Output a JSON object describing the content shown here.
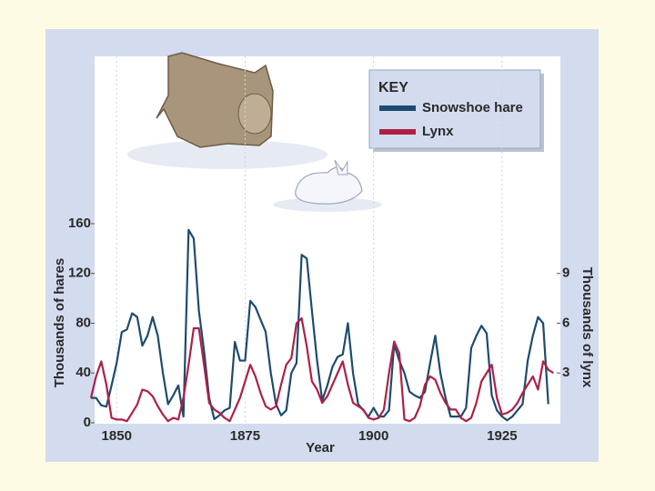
{
  "chart_data": {
    "type": "line",
    "x_label": "Year",
    "y_label": "Thousands of hares",
    "y2_label": "Thousands of lynx",
    "legend_title": "KEY",
    "legend_position": "upper right",
    "x": [
      1845,
      1846,
      1847,
      1848,
      1849,
      1850,
      1851,
      1852,
      1853,
      1854,
      1855,
      1856,
      1857,
      1858,
      1859,
      1860,
      1861,
      1862,
      1863,
      1864,
      1865,
      1866,
      1867,
      1868,
      1869,
      1870,
      1871,
      1872,
      1873,
      1874,
      1875,
      1876,
      1877,
      1878,
      1879,
      1880,
      1881,
      1882,
      1883,
      1884,
      1885,
      1886,
      1887,
      1888,
      1889,
      1890,
      1891,
      1892,
      1893,
      1894,
      1895,
      1896,
      1897,
      1898,
      1899,
      1900,
      1901,
      1902,
      1903,
      1904,
      1905,
      1906,
      1907,
      1908,
      1909,
      1910,
      1911,
      1912,
      1913,
      1914,
      1915,
      1916,
      1917,
      1918,
      1919,
      1920,
      1921,
      1922,
      1923,
      1924,
      1925,
      1926,
      1927,
      1928,
      1929,
      1930,
      1931,
      1932,
      1933,
      1934,
      1935
    ],
    "xlim": [
      1845,
      1936
    ],
    "xticks": [
      1850,
      1875,
      1900,
      1925
    ],
    "ylim": [
      0,
      160
    ],
    "yticks": [
      0,
      40,
      80,
      120,
      160
    ],
    "y2lim": [
      0,
      12
    ],
    "y2ticks": [
      3,
      6,
      9
    ],
    "series": [
      {
        "name": "Snowshoe hare",
        "color": "#1d4b6f",
        "axis": "y",
        "values": [
          20,
          20,
          14,
          13,
          30,
          48,
          73,
          75,
          88,
          85,
          62,
          70,
          85,
          70,
          40,
          15,
          22,
          30,
          5,
          155,
          148,
          90,
          58,
          20,
          3,
          6,
          10,
          12,
          65,
          50,
          50,
          98,
          93,
          83,
          73,
          40,
          15,
          6,
          10,
          40,
          48,
          135,
          132,
          90,
          50,
          18,
          30,
          45,
          53,
          55,
          80,
          40,
          15,
          10,
          5,
          12,
          5,
          5,
          10,
          63,
          50,
          40,
          25,
          22,
          20,
          25,
          48,
          70,
          40,
          20,
          5,
          5,
          5,
          12,
          60,
          70,
          78,
          72,
          22,
          10,
          5,
          2,
          5,
          10,
          15,
          50,
          70,
          85,
          80,
          15,
          null
        ]
      },
      {
        "name": "Lynx",
        "color": "#b01f47",
        "axis": "y2",
        "values": [
          1.5,
          2.8,
          3.7,
          2.3,
          0.3,
          0.2,
          0.2,
          0.1,
          0.6,
          1.1,
          2.0,
          1.9,
          1.6,
          1.0,
          0.5,
          0.1,
          0.3,
          0.2,
          1.5,
          3.5,
          5.7,
          5.7,
          3.5,
          1.2,
          0.8,
          0.6,
          0.3,
          0.1,
          0.8,
          1.5,
          2.5,
          3.5,
          2.8,
          1.8,
          1.0,
          0.8,
          1.0,
          2.3,
          3.5,
          3.9,
          6.0,
          6.3,
          4.6,
          2.5,
          2.0,
          1.2,
          1.6,
          2.3,
          3.0,
          3.7,
          2.3,
          1.2,
          1.0,
          0.8,
          0.3,
          0.2,
          0.3,
          0.8,
          3.0,
          4.9,
          4.2,
          0.2,
          0.1,
          0.3,
          1.0,
          2.3,
          2.8,
          2.6,
          1.8,
          1.2,
          0.8,
          0.8,
          0.3,
          0.1,
          0.3,
          1.2,
          2.5,
          3.0,
          3.5,
          1.5,
          0.5,
          0.6,
          0.8,
          1.2,
          1.8,
          2.3,
          2.8,
          2.0,
          3.7,
          3.2,
          3.0
        ]
      }
    ]
  }
}
